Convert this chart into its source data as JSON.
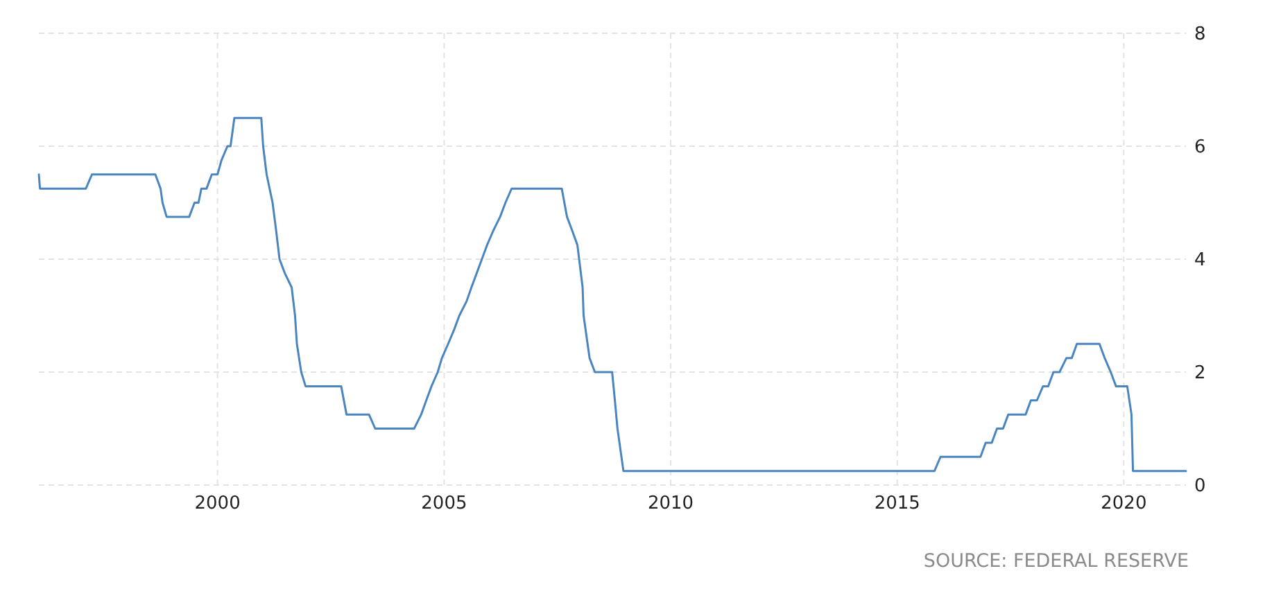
{
  "chart_data": {
    "type": "line",
    "x": [
      "1996-01-22",
      "1996-01-31",
      "1997-02-04",
      "1997-03-25",
      "1998-08-18",
      "1998-09-29",
      "1998-10-15",
      "1998-11-17",
      "1999-05-18",
      "1999-06-30",
      "1999-08-01",
      "1999-08-24",
      "1999-10-05",
      "1999-11-16",
      "2000-01-01",
      "2000-02-02",
      "2000-03-21",
      "2000-04-15",
      "2000-05-16",
      "2000-12-19",
      "2001-01-03",
      "2001-01-31",
      "2001-03-20",
      "2001-04-18",
      "2001-05-15",
      "2001-06-27",
      "2001-08-21",
      "2001-09-17",
      "2001-10-02",
      "2001-11-06",
      "2001-12-11",
      "2002-09-24",
      "2002-11-06",
      "2003-05-06",
      "2003-06-25",
      "2004-05-04",
      "2004-06-30",
      "2004-08-10",
      "2004-09-21",
      "2004-11-10",
      "2004-12-14",
      "2005-02-02",
      "2005-03-22",
      "2005-05-03",
      "2005-06-30",
      "2005-08-09",
      "2005-09-20",
      "2005-11-01",
      "2005-12-13",
      "2006-01-31",
      "2006-03-28",
      "2006-05-10",
      "2006-06-29",
      "2007-08-07",
      "2007-09-18",
      "2007-10-31",
      "2007-12-11",
      "2008-01-22",
      "2008-01-30",
      "2008-03-18",
      "2008-04-30",
      "2008-09-16",
      "2008-10-08",
      "2008-10-29",
      "2008-12-16",
      "2015-10-28",
      "2015-12-16",
      "2016-11-02",
      "2016-12-14",
      "2017-02-01",
      "2017-03-15",
      "2017-05-03",
      "2017-06-14",
      "2017-11-01",
      "2017-12-13",
      "2018-01-31",
      "2018-03-21",
      "2018-05-02",
      "2018-06-13",
      "2018-08-01",
      "2018-09-26",
      "2018-11-08",
      "2018-12-19",
      "2019-06-19",
      "2019-07-31",
      "2019-09-18",
      "2019-10-30",
      "2020-01-29",
      "2020-03-03",
      "2020-03-15",
      "2021-05-16"
    ],
    "series": [
      {
        "color": "#4a85c0",
        "values": [
          5.5,
          5.25,
          5.25,
          5.5,
          5.5,
          5.25,
          5.0,
          4.75,
          4.75,
          5.0,
          5.0,
          5.25,
          5.25,
          5.5,
          5.5,
          5.75,
          6.0,
          6.0,
          6.5,
          6.5,
          6.0,
          5.5,
          5.0,
          4.5,
          4.0,
          3.75,
          3.5,
          3.0,
          2.5,
          2.0,
          1.75,
          1.75,
          1.25,
          1.25,
          1.0,
          1.0,
          1.25,
          1.5,
          1.75,
          2.0,
          2.25,
          2.5,
          2.75,
          3.0,
          3.25,
          3.5,
          3.75,
          4.0,
          4.25,
          4.5,
          4.75,
          5.0,
          5.25,
          5.25,
          4.75,
          4.5,
          4.25,
          3.5,
          3.0,
          2.25,
          2.0,
          2.0,
          1.5,
          1.0,
          0.25,
          0.25,
          0.5,
          0.5,
          0.75,
          0.75,
          1.0,
          1.0,
          1.25,
          1.25,
          1.5,
          1.5,
          1.75,
          1.75,
          2.0,
          2.0,
          2.25,
          2.25,
          2.5,
          2.5,
          2.25,
          2.0,
          1.75,
          1.75,
          1.25,
          0.25,
          0.25
        ]
      }
    ],
    "xlim": [
      "1996-01-22",
      "2021-05-16"
    ],
    "xticks": [
      "2000",
      "2005",
      "2010",
      "2015",
      "2020"
    ],
    "ylim": [
      0,
      8
    ],
    "yticks": [
      0,
      2,
      4,
      6,
      8
    ],
    "grid": true,
    "annotations": [
      "SOURCE: FEDERAL RESERVE"
    ]
  }
}
